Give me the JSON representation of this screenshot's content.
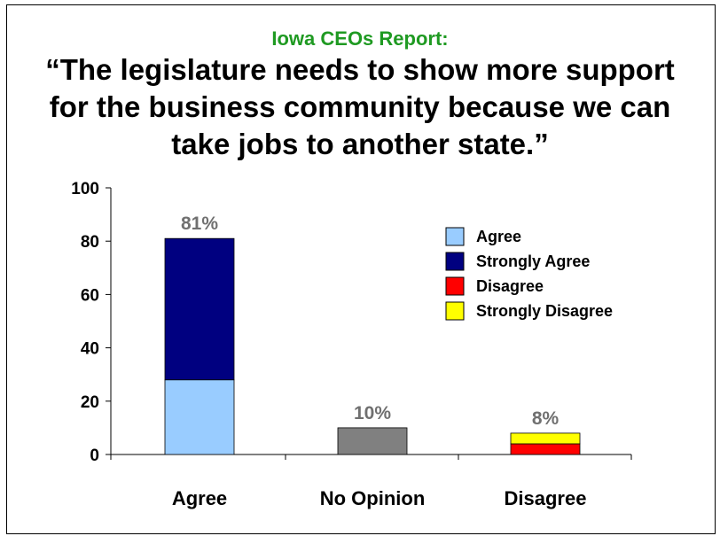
{
  "header": {
    "subtitle": "Iowa CEOs Report:",
    "title_lines": [
      "“The legislature needs to show more support",
      "for the business community because we can",
      "take jobs to another state.”"
    ]
  },
  "chart_data": {
    "type": "bar",
    "stacked": true,
    "categories": [
      "Agree",
      "No Opinion",
      "Disagree"
    ],
    "series": [
      {
        "name": "Agree",
        "values": [
          28,
          0,
          0
        ],
        "color": "#99ccff"
      },
      {
        "name": "Strongly Agree",
        "values": [
          53,
          0,
          0
        ],
        "color": "#000080"
      },
      {
        "name": "Disagree",
        "values": [
          0,
          0,
          4
        ],
        "color": "#ff0000"
      },
      {
        "name": "Strongly Disagree",
        "values": [
          0,
          0,
          4
        ],
        "color": "#ffff00"
      },
      {
        "name": "",
        "values": [
          0,
          10,
          0
        ],
        "color": "#808080"
      }
    ],
    "totals": [
      81,
      10,
      8
    ],
    "data_labels": [
      "81%",
      "10%",
      "8%"
    ],
    "ylim": [
      0,
      100
    ],
    "yticks": [
      0,
      20,
      40,
      60,
      80,
      100
    ],
    "legend_position": "right",
    "legend": [
      "Agree",
      "Strongly Agree",
      "Disagree",
      "Strongly Disagree"
    ],
    "grid": false,
    "xlabel": "",
    "ylabel": ""
  }
}
